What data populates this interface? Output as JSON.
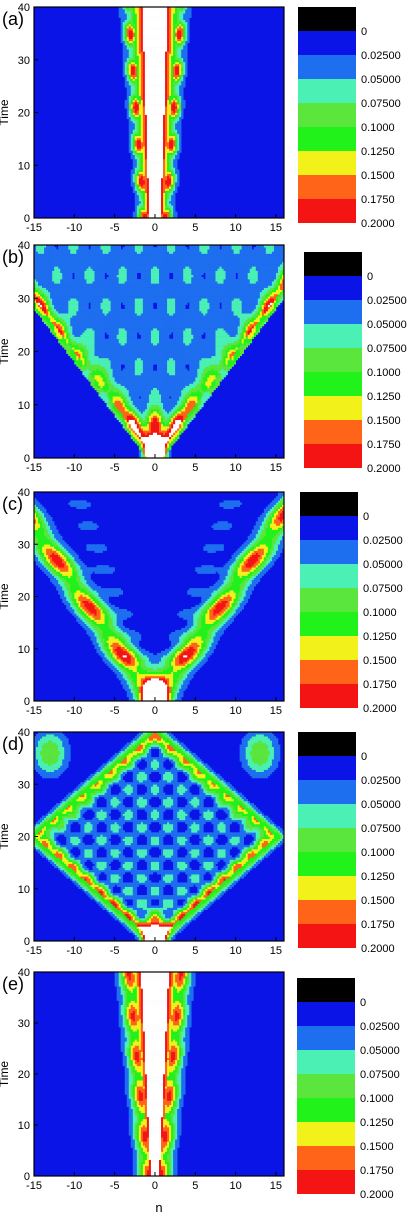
{
  "chart_data": [
    {
      "type": "heatmap",
      "panel_label": "(a)",
      "xlabel": "",
      "ylabel": "Time",
      "xlim": [
        -15,
        16
      ],
      "ylim": [
        0,
        40
      ],
      "xticks": [
        "-15",
        "-10",
        "-5",
        "0",
        "5",
        "10",
        "15"
      ],
      "yticks": [
        "0",
        "10",
        "20",
        "30",
        "40"
      ],
      "pattern": "narrow central beam, white core near n=0 for all times, green/orange/red fringes within |n|<4",
      "colorbar": {
        "levels": [
          "0",
          "0.02500",
          "0.05000",
          "0.07500",
          "0.1000",
          "0.1250",
          "0.1500",
          "0.1750",
          "0.2000"
        ],
        "colors": [
          "#000000",
          "#0a14e6",
          "#1e6ef0",
          "#4af0b4",
          "#5ae63c",
          "#21f21a",
          "#f2f21a",
          "#ff6419",
          "#f51414"
        ]
      }
    },
    {
      "type": "heatmap",
      "panel_label": "(b)",
      "xlabel": "",
      "ylabel": "Time",
      "xlim": [
        -15,
        16
      ],
      "ylim": [
        0,
        40
      ],
      "xticks": [
        "-15",
        "-10",
        "-5",
        "0",
        "5",
        "10",
        "15"
      ],
      "yticks": [
        "0",
        "10",
        "20",
        "30",
        "40"
      ],
      "pattern": "V-shaped spreading from n=0 at t=0 to |n|=15 at t=30, interior filled with oval interference cells",
      "colorbar": {
        "levels": [
          "0",
          "0.02500",
          "0.05000",
          "0.07500",
          "0.1000",
          "0.1250",
          "0.1500",
          "0.1750",
          "0.2000"
        ],
        "colors": [
          "#000000",
          "#0a14e6",
          "#1e6ef0",
          "#4af0b4",
          "#5ae63c",
          "#21f21a",
          "#f2f21a",
          "#ff6419",
          "#f51414"
        ]
      }
    },
    {
      "type": "heatmap",
      "panel_label": "(c)",
      "xlabel": "",
      "ylabel": "Time",
      "xlim": [
        -15,
        16
      ],
      "ylim": [
        0,
        40
      ],
      "xticks": [
        "-15",
        "-10",
        "-5",
        "0",
        "5",
        "10",
        "15"
      ],
      "yticks": [
        "0",
        "10",
        "20",
        "30",
        "40"
      ],
      "pattern": "two strong V-shaped ballistic arms from n=0 at t=0 reaching |n|=15 at t=35, weak interior",
      "colorbar": {
        "levels": [
          "0",
          "0.02500",
          "0.05000",
          "0.07500",
          "0.1000",
          "0.1250",
          "0.1500",
          "0.1750",
          "0.2000"
        ],
        "colors": [
          "#000000",
          "#0a14e6",
          "#1e6ef0",
          "#4af0b4",
          "#5ae63c",
          "#21f21a",
          "#f2f21a",
          "#ff6419",
          "#f51414"
        ]
      }
    },
    {
      "type": "heatmap",
      "panel_label": "(d)",
      "xlabel": "",
      "ylabel": "Time",
      "xlim": [
        -15,
        16
      ],
      "ylim": [
        0,
        40
      ],
      "xticks": [
        "-15",
        "-10",
        "-5",
        "0",
        "5",
        "10",
        "15"
      ],
      "yticks": [
        "0",
        "10",
        "20",
        "30",
        "40"
      ],
      "pattern": "diamond interference pattern: arms reach |n|=15 near t=20 and reflect back toward n=0 at t=40, grid of small cells inside",
      "colorbar": {
        "levels": [
          "0",
          "0.02500",
          "0.05000",
          "0.07500",
          "0.1000",
          "0.1250",
          "0.1500",
          "0.1750",
          "0.2000"
        ],
        "colors": [
          "#000000",
          "#0a14e6",
          "#1e6ef0",
          "#4af0b4",
          "#5ae63c",
          "#21f21a",
          "#f2f21a",
          "#ff6419",
          "#f51414"
        ]
      }
    },
    {
      "type": "heatmap",
      "panel_label": "(e)",
      "xlabel": "n",
      "ylabel": "Time",
      "xlim": [
        -15,
        16
      ],
      "ylim": [
        0,
        40
      ],
      "xticks": [
        "-15",
        "-10",
        "-5",
        "0",
        "5",
        "10",
        "15"
      ],
      "yticks": [
        "0",
        "10",
        "20",
        "30",
        "40"
      ],
      "pattern": "slowly widening central beam with white core, orange/yellow bands out to |n|~4 at t=40",
      "colorbar": {
        "levels": [
          "0",
          "0.02500",
          "0.05000",
          "0.07500",
          "0.1000",
          "0.1250",
          "0.1500",
          "0.1750",
          "0.2000"
        ],
        "colors": [
          "#000000",
          "#0a14e6",
          "#1e6ef0",
          "#4af0b4",
          "#5ae63c",
          "#21f21a",
          "#f2f21a",
          "#ff6419",
          "#f51414"
        ]
      }
    }
  ]
}
